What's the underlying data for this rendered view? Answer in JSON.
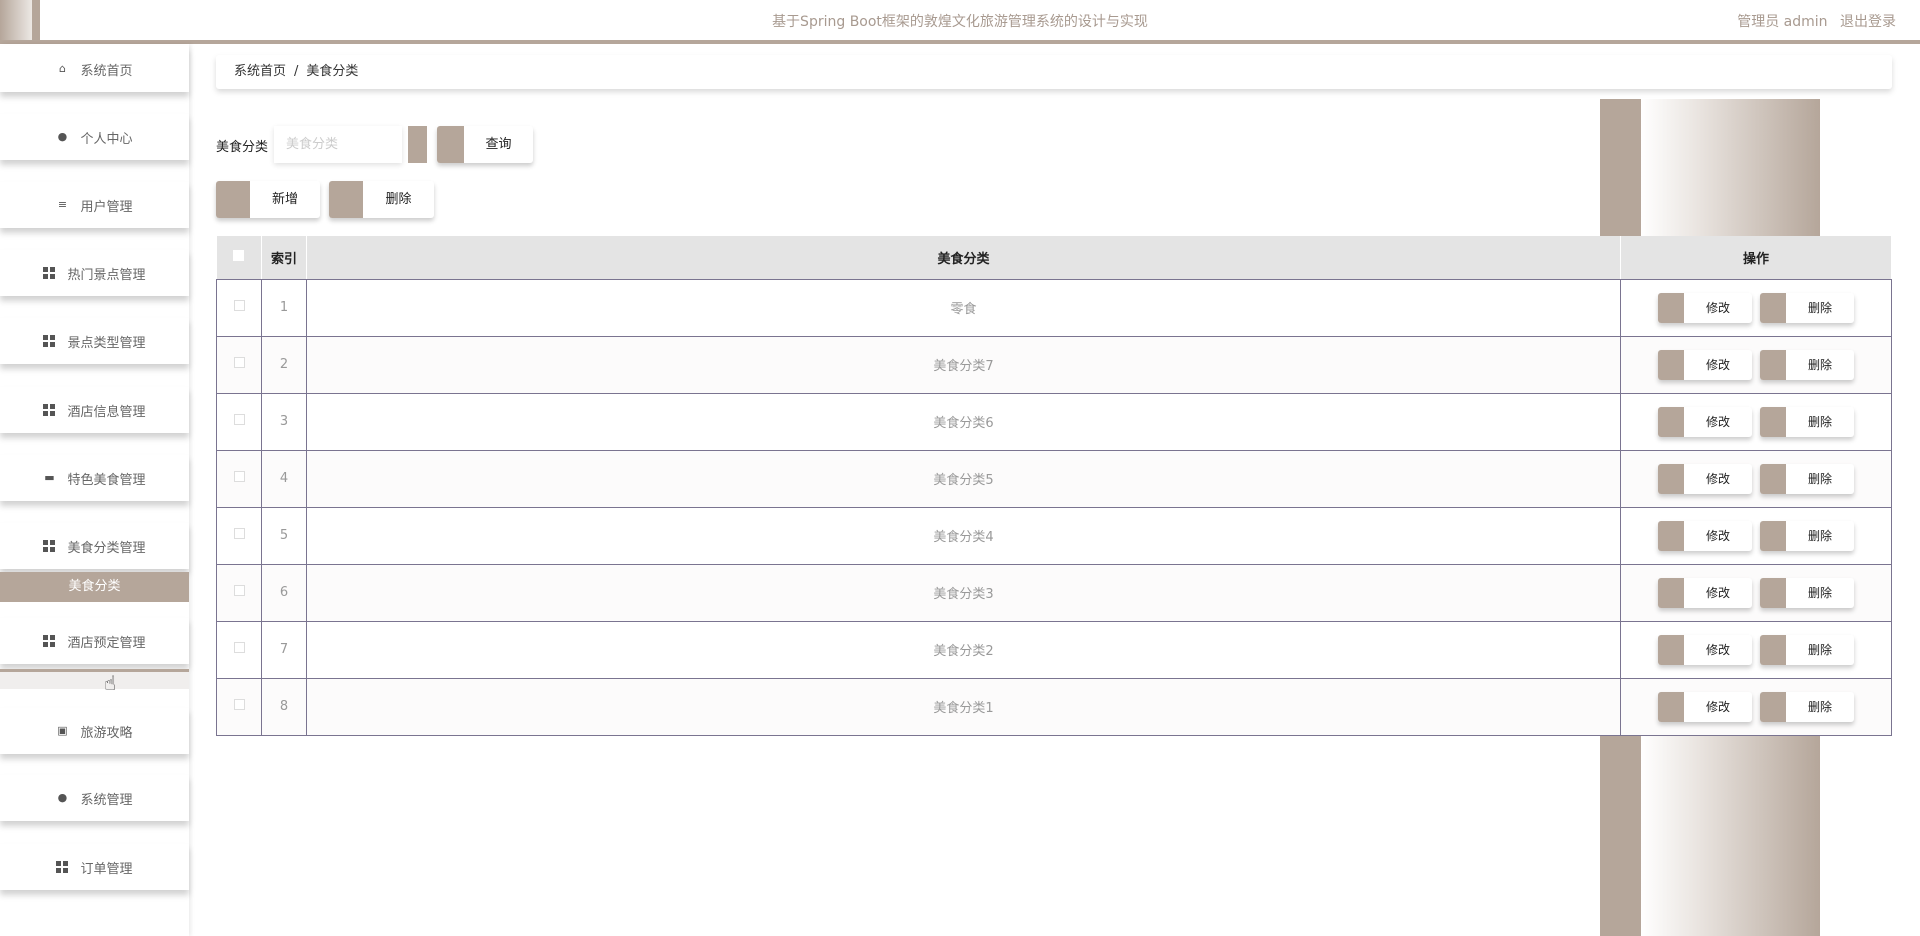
{
  "header": {
    "title": "基于Spring Boot框架的敦煌文化旅游管理系统的设计与实现",
    "user_label": "管理员 admin",
    "logout": "退出登录"
  },
  "sidebar": {
    "items": [
      {
        "label": "系统首页",
        "icon": "home-icon"
      },
      {
        "label": "个人中心",
        "icon": "user-icon"
      },
      {
        "label": "用户管理",
        "icon": "sliders-icon"
      },
      {
        "label": "热门景点管理",
        "icon": "grid-icon"
      },
      {
        "label": "景点类型管理",
        "icon": "grid-icon"
      },
      {
        "label": "酒店信息管理",
        "icon": "grid-icon"
      },
      {
        "label": "特色美食管理",
        "icon": "briefcase-icon"
      },
      {
        "label": "美食分类管理",
        "icon": "grid-icon"
      },
      {
        "label": "酒店预定管理",
        "icon": "grid-icon"
      },
      {
        "label": "旅游攻略",
        "icon": "clipboard-icon"
      },
      {
        "label": "系统管理",
        "icon": "bulb-icon"
      },
      {
        "label": "订单管理",
        "icon": "grid-icon"
      }
    ],
    "active_sub": "美食分类"
  },
  "breadcrumb": {
    "home": "系统首页",
    "sep": "/",
    "current": "美食分类"
  },
  "search": {
    "label": "美食分类",
    "placeholder": "美食分类",
    "value": "",
    "button": "查询"
  },
  "actions": {
    "add": "新增",
    "delete": "删除"
  },
  "table": {
    "headers": {
      "index": "索引",
      "name": "美食分类",
      "ops": "操作"
    },
    "rows": [
      {
        "index": "1",
        "name": "零食"
      },
      {
        "index": "2",
        "name": "美食分类7"
      },
      {
        "index": "3",
        "name": "美食分类6"
      },
      {
        "index": "4",
        "name": "美食分类5"
      },
      {
        "index": "5",
        "name": "美食分类4"
      },
      {
        "index": "6",
        "name": "美食分类3"
      },
      {
        "index": "7",
        "name": "美食分类2"
      },
      {
        "index": "8",
        "name": "美食分类1"
      }
    ],
    "row_actions": {
      "edit": "修改",
      "delete": "删除"
    }
  },
  "colors": {
    "accent": "#b5a69a",
    "border": "#7a7490",
    "header_bg": "#e4e4e4"
  }
}
